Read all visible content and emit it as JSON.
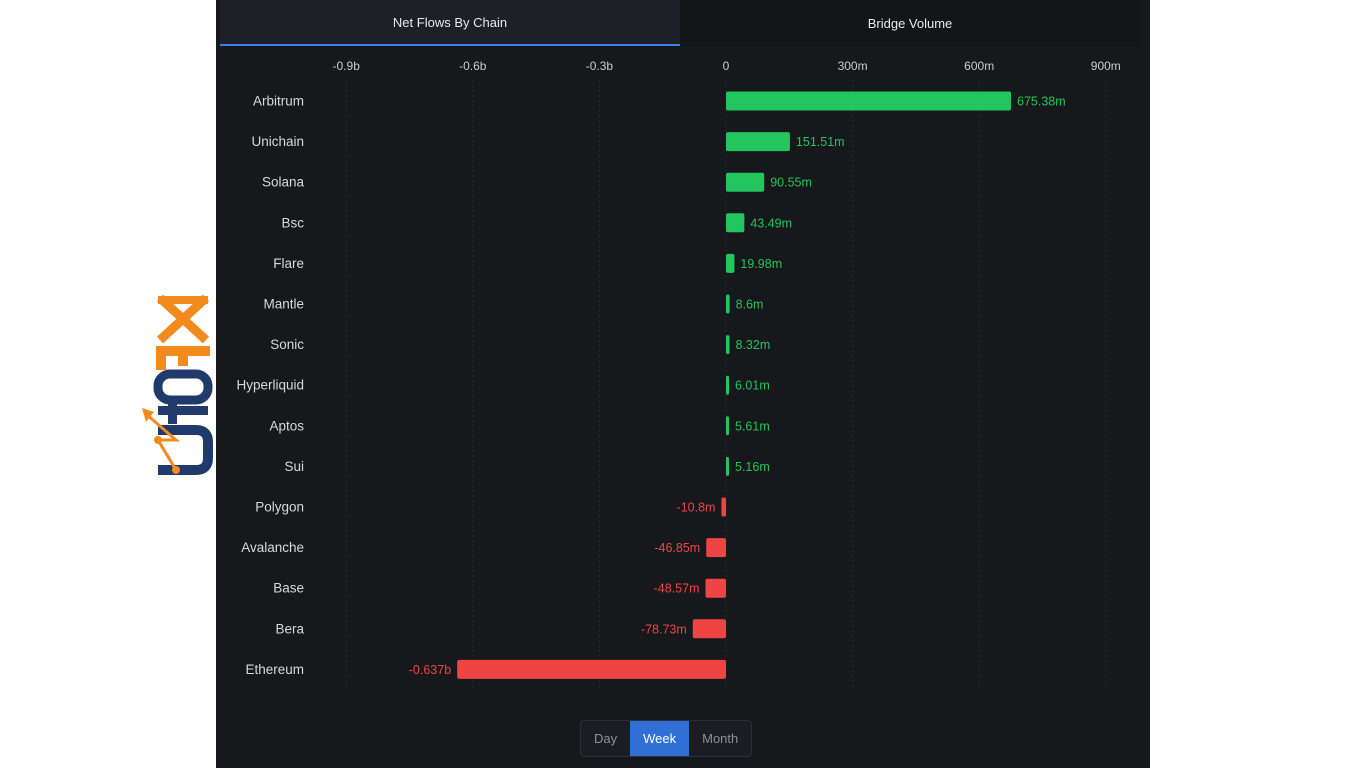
{
  "brand": {
    "logo_text": "UtoFX",
    "logo_orange": "#f28a1e",
    "logo_navy": "#1f3a6b"
  },
  "tabs": [
    {
      "label": "Net Flows By Chain",
      "active": true
    },
    {
      "label": "Bridge Volume",
      "active": false
    }
  ],
  "period_toggle": {
    "options": [
      "Day",
      "Week",
      "Month"
    ],
    "selected": "Week"
  },
  "colors": {
    "positive": "#22c55e",
    "negative": "#ef4444",
    "accent": "#2f6fd6"
  },
  "chart_data": {
    "type": "bar",
    "orientation": "horizontal",
    "title": "",
    "xlabel": "",
    "ylabel": "",
    "xlim": [
      -1000000000,
      1000000000
    ],
    "x_ticks": [
      {
        "value": -900000000,
        "label": "-0.9b"
      },
      {
        "value": -600000000,
        "label": "-0.6b"
      },
      {
        "value": -300000000,
        "label": "-0.3b"
      },
      {
        "value": 0,
        "label": "0"
      },
      {
        "value": 300000000,
        "label": "300m"
      },
      {
        "value": 600000000,
        "label": "600m"
      },
      {
        "value": 900000000,
        "label": "900m"
      }
    ],
    "grid": true,
    "categories": [
      "Arbitrum",
      "Unichain",
      "Solana",
      "Bsc",
      "Flare",
      "Mantle",
      "Sonic",
      "Hyperliquid",
      "Aptos",
      "Sui",
      "Polygon",
      "Avalanche",
      "Base",
      "Bera",
      "Ethereum"
    ],
    "values": [
      675380000,
      151510000,
      90550000,
      43490000,
      19980000,
      8600000,
      8320000,
      6010000,
      5610000,
      5160000,
      -10800000,
      -46850000,
      -48570000,
      -78730000,
      -637000000
    ],
    "value_labels": [
      "675.38m",
      "151.51m",
      "90.55m",
      "43.49m",
      "19.98m",
      "8.6m",
      "8.32m",
      "6.01m",
      "5.61m",
      "5.16m",
      "-10.8m",
      "-46.85m",
      "-48.57m",
      "-78.73m",
      "-0.637b"
    ]
  }
}
